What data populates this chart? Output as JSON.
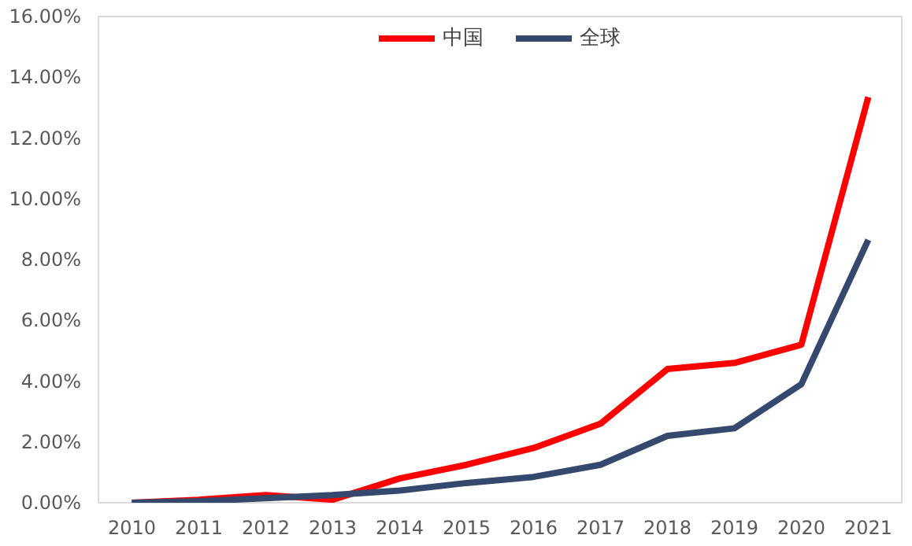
{
  "chart_data": {
    "type": "line",
    "categories": [
      "2010",
      "2011",
      "2012",
      "2013",
      "2014",
      "2015",
      "2016",
      "2017",
      "2018",
      "2019",
      "2020",
      "2021"
    ],
    "series": [
      {
        "name": "中国",
        "color": "#ff0000",
        "values": [
          0.0,
          0.1,
          0.25,
          0.1,
          0.8,
          1.25,
          1.8,
          2.6,
          4.4,
          4.6,
          5.2,
          13.35
        ]
      },
      {
        "name": "全球",
        "color": "#35496e",
        "values": [
          0.0,
          0.05,
          0.15,
          0.25,
          0.4,
          0.65,
          0.85,
          1.25,
          2.2,
          2.45,
          3.9,
          8.65
        ]
      }
    ],
    "ylim": [
      0,
      16
    ],
    "yticks": [
      {
        "value": 0,
        "label": "0.00%"
      },
      {
        "value": 2,
        "label": "2.00%"
      },
      {
        "value": 4,
        "label": "4.00%"
      },
      {
        "value": 6,
        "label": "6.00%"
      },
      {
        "value": 8,
        "label": "8.00%"
      },
      {
        "value": 10,
        "label": "10.00%"
      },
      {
        "value": 12,
        "label": "12.00%"
      },
      {
        "value": 14,
        "label": "14.00%"
      },
      {
        "value": 16,
        "label": "16.00%"
      }
    ],
    "grid": false,
    "legend": "top",
    "marker": "none",
    "line_style": "solid"
  }
}
